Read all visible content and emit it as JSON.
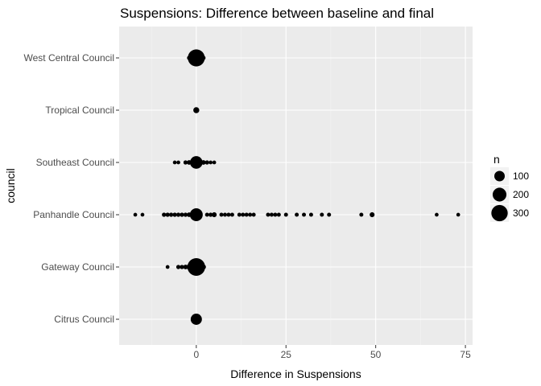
{
  "chart_data": {
    "type": "scatter",
    "title": "Suspensions: Difference between baseline and final",
    "xlabel": "Difference in Suspensions",
    "ylabel": "council",
    "xlim": [
      -21.5,
      77
    ],
    "xticks": [
      0,
      25,
      50,
      75
    ],
    "xtick_labels": [
      "0",
      "25",
      "50",
      "75"
    ],
    "categories": [
      "West Central Council",
      "Tropical Council",
      "Southeast Council",
      "Panhandle Council",
      "Gateway Council",
      "Citrus Council"
    ],
    "legend": {
      "title": "n",
      "entries": [
        "100",
        "200",
        "300"
      ],
      "values": [
        100,
        200,
        300
      ],
      "position": "right"
    },
    "points": [
      {
        "council": "West Central Council",
        "x": -2,
        "n": 5
      },
      {
        "council": "West Central Council",
        "x": -1,
        "n": 30
      },
      {
        "council": "West Central Council",
        "x": 0,
        "n": 330
      },
      {
        "council": "West Central Council",
        "x": 1,
        "n": 20
      },
      {
        "council": "West Central Council",
        "x": 2,
        "n": 5
      },
      {
        "council": "Tropical Council",
        "x": 0,
        "n": 20
      },
      {
        "council": "Southeast Council",
        "x": -6,
        "n": 3
      },
      {
        "council": "Southeast Council",
        "x": -5,
        "n": 3
      },
      {
        "council": "Southeast Council",
        "x": -3,
        "n": 5
      },
      {
        "council": "Southeast Council",
        "x": -2,
        "n": 8
      },
      {
        "council": "Southeast Council",
        "x": -1,
        "n": 15
      },
      {
        "council": "Southeast Council",
        "x": 0,
        "n": 160
      },
      {
        "council": "Southeast Council",
        "x": 1,
        "n": 15
      },
      {
        "council": "Southeast Council",
        "x": 2,
        "n": 8
      },
      {
        "council": "Southeast Council",
        "x": 3,
        "n": 5
      },
      {
        "council": "Southeast Council",
        "x": 4,
        "n": 3
      },
      {
        "council": "Southeast Council",
        "x": 5,
        "n": 3
      },
      {
        "council": "Panhandle Council",
        "x": -17,
        "n": 3
      },
      {
        "council": "Panhandle Council",
        "x": -15,
        "n": 3
      },
      {
        "council": "Panhandle Council",
        "x": -9,
        "n": 5
      },
      {
        "council": "Panhandle Council",
        "x": -8,
        "n": 5
      },
      {
        "council": "Panhandle Council",
        "x": -7,
        "n": 5
      },
      {
        "council": "Panhandle Council",
        "x": -6,
        "n": 5
      },
      {
        "council": "Panhandle Council",
        "x": -5,
        "n": 5
      },
      {
        "council": "Panhandle Council",
        "x": -4,
        "n": 5
      },
      {
        "council": "Panhandle Council",
        "x": -3,
        "n": 5
      },
      {
        "council": "Panhandle Council",
        "x": -2,
        "n": 8
      },
      {
        "council": "Panhandle Council",
        "x": -1,
        "n": 15
      },
      {
        "council": "Panhandle Council",
        "x": 0,
        "n": 170
      },
      {
        "council": "Panhandle Council",
        "x": 3,
        "n": 4
      },
      {
        "council": "Panhandle Council",
        "x": 4,
        "n": 5
      },
      {
        "council": "Panhandle Council",
        "x": 5,
        "n": 10
      },
      {
        "council": "Panhandle Council",
        "x": 7,
        "n": 4
      },
      {
        "council": "Panhandle Council",
        "x": 8,
        "n": 4
      },
      {
        "council": "Panhandle Council",
        "x": 9,
        "n": 4
      },
      {
        "council": "Panhandle Council",
        "x": 10,
        "n": 4
      },
      {
        "council": "Panhandle Council",
        "x": 12,
        "n": 4
      },
      {
        "council": "Panhandle Council",
        "x": 13,
        "n": 4
      },
      {
        "council": "Panhandle Council",
        "x": 14,
        "n": 4
      },
      {
        "council": "Panhandle Council",
        "x": 15,
        "n": 4
      },
      {
        "council": "Panhandle Council",
        "x": 16,
        "n": 4
      },
      {
        "council": "Panhandle Council",
        "x": 20,
        "n": 4
      },
      {
        "council": "Panhandle Council",
        "x": 21,
        "n": 4
      },
      {
        "council": "Panhandle Council",
        "x": 22,
        "n": 4
      },
      {
        "council": "Panhandle Council",
        "x": 23,
        "n": 4
      },
      {
        "council": "Panhandle Council",
        "x": 25,
        "n": 4
      },
      {
        "council": "Panhandle Council",
        "x": 28,
        "n": 4
      },
      {
        "council": "Panhandle Council",
        "x": 30,
        "n": 4
      },
      {
        "council": "Panhandle Council",
        "x": 32,
        "n": 4
      },
      {
        "council": "Panhandle Council",
        "x": 35,
        "n": 4
      },
      {
        "council": "Panhandle Council",
        "x": 37,
        "n": 4
      },
      {
        "council": "Panhandle Council",
        "x": 46,
        "n": 4
      },
      {
        "council": "Panhandle Council",
        "x": 49,
        "n": 10
      },
      {
        "council": "Panhandle Council",
        "x": 67,
        "n": 3
      },
      {
        "council": "Panhandle Council",
        "x": 73,
        "n": 3
      },
      {
        "council": "Gateway Council",
        "x": -8,
        "n": 3
      },
      {
        "council": "Gateway Council",
        "x": -5,
        "n": 5
      },
      {
        "council": "Gateway Council",
        "x": -4,
        "n": 5
      },
      {
        "council": "Gateway Council",
        "x": -3,
        "n": 8
      },
      {
        "council": "Gateway Council",
        "x": -2,
        "n": 15
      },
      {
        "council": "Gateway Council",
        "x": -1,
        "n": 40
      },
      {
        "council": "Gateway Council",
        "x": 0,
        "n": 360
      },
      {
        "council": "Gateway Council",
        "x": 1,
        "n": 40
      },
      {
        "council": "Gateway Council",
        "x": 2,
        "n": 10
      },
      {
        "council": "Citrus Council",
        "x": 0,
        "n": 120
      }
    ]
  }
}
